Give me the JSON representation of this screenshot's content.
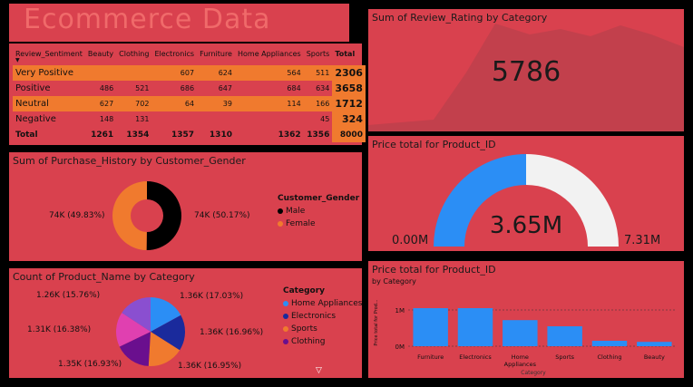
{
  "dashboard_title": "Ecommerce Data",
  "matrix": {
    "headers": [
      "Review_Sentiment",
      "Beauty",
      "Clothing",
      "Electronics",
      "Furniture",
      "Home Appliances",
      "Sports",
      "Total"
    ],
    "rows": [
      {
        "label": "Very Positive",
        "cells": [
          "",
          "",
          "607",
          "624",
          "564",
          "511"
        ],
        "total": "2306"
      },
      {
        "label": "Positive",
        "cells": [
          "486",
          "521",
          "686",
          "647",
          "684",
          "634"
        ],
        "total": "3658"
      },
      {
        "label": "Neutral",
        "cells": [
          "627",
          "702",
          "64",
          "39",
          "114",
          "166"
        ],
        "total": "1712"
      },
      {
        "label": "Negative",
        "cells": [
          "148",
          "131",
          "",
          "",
          "",
          "45"
        ],
        "total": "324"
      }
    ],
    "total_row": {
      "label": "Total",
      "cells": [
        "1261",
        "1354",
        "1357",
        "1310",
        "1362",
        "1356"
      ],
      "total": "8000"
    }
  },
  "review_card": {
    "title": "Sum of Review_Rating by Category",
    "value": "5786",
    "area_color": "#c2404c"
  },
  "gender_donut": {
    "title": "Sum of Purchase_History by Customer_Gender",
    "left_label": "74K (49.83%)",
    "right_label": "74K (50.17%)",
    "legend_title": "Customer_Gender",
    "legend": [
      {
        "name": "Male",
        "color": "#000000"
      },
      {
        "name": "Female",
        "color": "#f07a2e"
      }
    ],
    "chart_data": {
      "type": "pie",
      "labels": [
        "Male",
        "Female"
      ],
      "values": [
        50.17,
        49.83
      ]
    }
  },
  "gauge": {
    "title": "Price total for Product_ID",
    "value": "3.65M",
    "min": "0.00M",
    "max": "7.31M",
    "fill_fraction": 0.5,
    "fill_color": "#2b8ef5",
    "track_color": "#f2f2f2"
  },
  "category_pie": {
    "title": "Count of Product_Name by Category",
    "legend_title": "Category",
    "legend": [
      {
        "name": "Home Appliances",
        "color": "#2b8ef5"
      },
      {
        "name": "Electronics",
        "color": "#1a2a9c"
      },
      {
        "name": "Sports",
        "color": "#f07a2e"
      },
      {
        "name": "Clothing",
        "color": "#6a0f8e"
      }
    ],
    "labels": [
      "1.26K (15.76%)",
      "1.36K (17.03%)",
      "1.31K (16.38%)",
      "1.36K (16.96%)",
      "1.35K (16.93%)",
      "1.36K (16.95%)"
    ],
    "chart_data": {
      "type": "pie",
      "slices": [
        {
          "value": 17.03,
          "color": "#2b8ef5"
        },
        {
          "value": 16.96,
          "color": "#1a2a9c"
        },
        {
          "value": 16.95,
          "color": "#f07a2e"
        },
        {
          "value": 16.93,
          "color": "#6a0f8e"
        },
        {
          "value": 16.38,
          "color": "#e040b0"
        },
        {
          "value": 15.76,
          "color": "#8a4fd0"
        }
      ]
    }
  },
  "price_bar": {
    "title": "Price total for Product_ID",
    "subtitle": "by Category",
    "ylabel": "Price total for Prod...",
    "xlabel": "Category",
    "yticks": [
      "1M",
      "0M"
    ],
    "bar_color": "#2b8ef5",
    "chart_data": {
      "type": "bar",
      "categories": [
        "Furniture",
        "Electronics",
        "Home Appliances",
        "Sports",
        "Clothing",
        "Beauty"
      ],
      "values": [
        1.05,
        1.05,
        0.72,
        0.55,
        0.15,
        0.12
      ],
      "ylim": [
        0,
        1.3
      ]
    }
  }
}
